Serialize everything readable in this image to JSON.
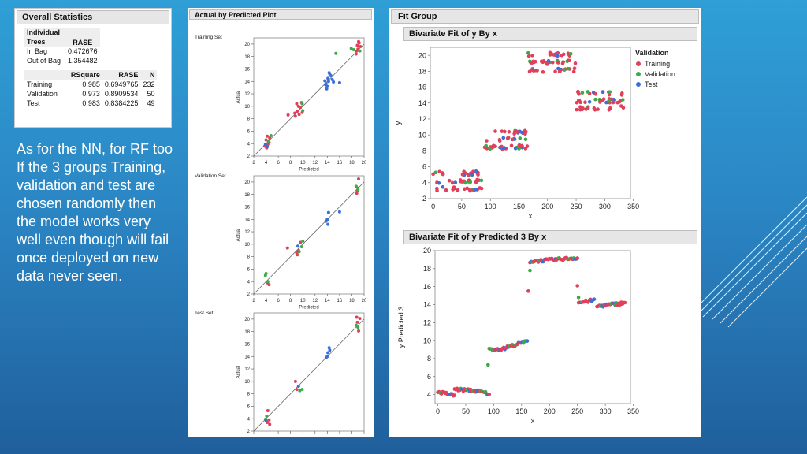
{
  "colors": {
    "training": "#e0405a",
    "validation": "#3caa46",
    "test": "#3a6fd8"
  },
  "overall_stats": {
    "title": "Overall Statistics",
    "table1": {
      "col_header_1": "Individual Trees",
      "col_header_2": "RASE",
      "rows": [
        {
          "label": "In Bag",
          "rase": "0.472676"
        },
        {
          "label": "Out of Bag",
          "rase": "1.354482"
        }
      ]
    },
    "table2": {
      "headers": [
        "",
        "RSquare",
        "RASE",
        "N"
      ],
      "rows": [
        {
          "label": "Training",
          "rsquare": "0.985",
          "rase": "0.6949765",
          "n": "232"
        },
        {
          "label": "Validation",
          "rsquare": "0.973",
          "rase": "0.8909534",
          "n": "50"
        },
        {
          "label": "Test",
          "rsquare": "0.983",
          "rase": "0.8384225",
          "n": "49"
        }
      ]
    }
  },
  "body_text": "As for the NN, for RF too If the 3 groups Training, validation and test are chosen randomly then the model works very well even though will fail once deployed on new data never seen.",
  "actual_by_predicted": {
    "title": "Actual by Predicted Plot"
  },
  "fit_group": {
    "title": "Fit Group",
    "plot1_title": "Bivariate Fit of y By x",
    "plot2_title": "Bivariate Fit of y Predicted 3 By x"
  },
  "chart_data": [
    {
      "type": "scatter",
      "id": "avp-training",
      "title": "Training Set",
      "xlabel": "Predicted",
      "ylabel": "Actual",
      "xlim": [
        2,
        20
      ],
      "ylim": [
        2,
        21
      ],
      "x_ticks": [
        2,
        4,
        6,
        8,
        10,
        12,
        14,
        16,
        18,
        20
      ],
      "y_ticks": [
        2,
        4,
        6,
        8,
        10,
        12,
        14,
        16,
        18,
        20
      ],
      "diagonal": true,
      "series": [
        {
          "name": "Training",
          "color_key": "training",
          "points": [
            [
              4.1,
              3.3
            ],
            [
              4.3,
              3.9
            ],
            [
              4.0,
              4.6
            ],
            [
              4.5,
              4.2
            ],
            [
              3.8,
              3.6
            ],
            [
              4.2,
              5.2
            ],
            [
              4.6,
              4.9
            ],
            [
              8.8,
              8.4
            ],
            [
              9.1,
              9.2
            ],
            [
              9.4,
              8.7
            ],
            [
              9.0,
              10.4
            ],
            [
              9.6,
              9.8
            ],
            [
              9.8,
              10.6
            ],
            [
              8.7,
              8.9
            ],
            [
              9.3,
              10.0
            ],
            [
              18.7,
              18.4
            ],
            [
              19.0,
              19.2
            ],
            [
              19.2,
              20.2
            ],
            [
              18.8,
              18.9
            ],
            [
              19.4,
              19.6
            ],
            [
              19.1,
              20.4
            ],
            [
              18.9,
              19.8
            ],
            [
              7.6,
              8.6
            ],
            [
              9.9,
              9.0
            ]
          ]
        },
        {
          "name": "Validation",
          "color_key": "validation",
          "points": [
            [
              4.4,
              4.4
            ],
            [
              4.8,
              5.3
            ],
            [
              9.9,
              10.4
            ],
            [
              10.0,
              9.3
            ],
            [
              15.4,
              18.5
            ],
            [
              18.3,
              19.1
            ],
            [
              17.9,
              19.3
            ],
            [
              19.3,
              18.9
            ]
          ]
        },
        {
          "name": "Test",
          "color_key": "test",
          "points": [
            [
              14.0,
              13.2
            ],
            [
              14.2,
              14.0
            ],
            [
              13.8,
              13.6
            ],
            [
              14.4,
              15.2
            ],
            [
              14.1,
              14.5
            ],
            [
              13.9,
              12.8
            ],
            [
              14.6,
              14.9
            ],
            [
              15.0,
              13.9
            ],
            [
              14.3,
              15.4
            ],
            [
              13.6,
              14.1
            ],
            [
              14.8,
              14.3
            ],
            [
              3.9,
              3.9
            ],
            [
              4.2,
              3.5
            ],
            [
              13.7,
              13.5
            ],
            [
              16.0,
              13.8
            ]
          ]
        }
      ]
    },
    {
      "type": "scatter",
      "id": "avp-validation",
      "title": "Validation Set",
      "xlabel": "Predicted",
      "ylabel": "Actual",
      "xlim": [
        2,
        20
      ],
      "ylim": [
        2,
        21
      ],
      "x_ticks": [
        2,
        4,
        6,
        8,
        10,
        12,
        14,
        16,
        18,
        20
      ],
      "y_ticks": [
        2,
        4,
        6,
        8,
        10,
        12,
        14,
        16,
        18,
        20
      ],
      "diagonal": true,
      "series": [
        {
          "name": "Training",
          "color_key": "training",
          "points": [
            [
              4.2,
              3.8
            ],
            [
              4.5,
              3.5
            ],
            [
              7.5,
              9.4
            ],
            [
              9.0,
              8.6
            ],
            [
              9.3,
              9.0
            ],
            [
              9.6,
              10.3
            ],
            [
              9.1,
              8.3
            ],
            [
              18.8,
              18.2
            ],
            [
              19.0,
              19.0
            ],
            [
              19.1,
              20.5
            ],
            [
              18.9,
              18.6
            ]
          ]
        },
        {
          "name": "Validation",
          "color_key": "validation",
          "points": [
            [
              4.0,
              5.3
            ],
            [
              3.9,
              5.0
            ],
            [
              10.0,
              10.5
            ],
            [
              9.8,
              9.6
            ],
            [
              9.4,
              8.8
            ],
            [
              19.0,
              18.8
            ],
            [
              18.7,
              19.3
            ],
            [
              4.3,
              4.0
            ]
          ]
        },
        {
          "name": "Test",
          "color_key": "test",
          "points": [
            [
              14.0,
              14.0
            ],
            [
              13.8,
              13.7
            ],
            [
              14.2,
              15.1
            ],
            [
              14.1,
              13.2
            ],
            [
              16.0,
              15.2
            ],
            [
              9.2,
              9.7
            ]
          ]
        }
      ]
    },
    {
      "type": "scatter",
      "id": "avp-test",
      "title": "Test Set",
      "xlabel": "Predicted",
      "ylabel": "Actual",
      "xlim": [
        2,
        20
      ],
      "ylim": [
        2,
        21
      ],
      "x_ticks": [
        2,
        4,
        6,
        8,
        10,
        12,
        14,
        16,
        18,
        20
      ],
      "y_ticks": [
        2,
        4,
        6,
        8,
        10,
        12,
        14,
        16,
        18,
        20
      ],
      "diagonal": true,
      "series": [
        {
          "name": "Training",
          "color_key": "training",
          "points": [
            [
              4.3,
              5.3
            ],
            [
              4.2,
              3.4
            ],
            [
              4.5,
              3.8
            ],
            [
              4.6,
              3.1
            ],
            [
              8.8,
              10.0
            ],
            [
              9.0,
              8.7
            ],
            [
              18.8,
              20.3
            ],
            [
              19.1,
              18.1
            ],
            [
              18.9,
              19.5
            ],
            [
              19.3,
              20.1
            ]
          ]
        },
        {
          "name": "Validation",
          "color_key": "validation",
          "points": [
            [
              3.9,
              3.9
            ],
            [
              4.1,
              4.4
            ],
            [
              9.5,
              8.5
            ],
            [
              9.9,
              8.7
            ],
            [
              18.7,
              19.0
            ],
            [
              19.0,
              18.7
            ]
          ]
        },
        {
          "name": "Test",
          "color_key": "test",
          "points": [
            [
              14.0,
              14.0
            ],
            [
              14.3,
              15.4
            ],
            [
              13.8,
              13.8
            ],
            [
              14.1,
              14.6
            ],
            [
              14.4,
              15.0
            ],
            [
              4.0,
              3.7
            ],
            [
              9.3,
              9.2
            ]
          ]
        }
      ]
    },
    {
      "type": "scatter",
      "id": "fit-y-by-x",
      "title": "Bivariate Fit of y By x",
      "xlabel": "x",
      "ylabel": "y",
      "xlim": [
        -5,
        345
      ],
      "ylim": [
        2,
        21
      ],
      "x_ticks": [
        0,
        50,
        100,
        150,
        200,
        250,
        300,
        350
      ],
      "y_ticks": [
        2,
        4,
        6,
        8,
        10,
        12,
        14,
        16,
        18,
        20
      ],
      "legend": {
        "title": "Validation",
        "items": [
          "Training",
          "Validation",
          "Test"
        ],
        "position": "top-right"
      },
      "groups": [
        {
          "x_range": [
            0,
            85
          ],
          "y_center": 4.2,
          "y_spread": 1.1,
          "count": 60
        },
        {
          "x_range": [
            90,
            165
          ],
          "y_center": 9.4,
          "y_spread": 1.0,
          "count": 55
        },
        {
          "x_range": [
            165,
            250
          ],
          "y_center": 19.1,
          "y_spread": 1.1,
          "count": 60
        },
        {
          "x_range": [
            250,
            335
          ],
          "y_center": 14.3,
          "y_spread": 1.0,
          "count": 55
        }
      ]
    },
    {
      "type": "scatter",
      "id": "fit-ypred-by-x",
      "title": "Bivariate Fit of y Predicted 3 By x",
      "xlabel": "x",
      "ylabel": "y Predicted 3",
      "xlim": [
        -5,
        345
      ],
      "ylim": [
        3,
        20
      ],
      "x_ticks": [
        0,
        50,
        100,
        150,
        200,
        250,
        300,
        350
      ],
      "y_ticks": [
        4,
        6,
        8,
        10,
        12,
        14,
        16,
        18,
        20
      ],
      "segments": [
        {
          "x_range": [
            0,
            30
          ],
          "y_start": 4.3,
          "y_end": 3.9
        },
        {
          "x_range": [
            30,
            70
          ],
          "y_start": 4.6,
          "y_end": 4.4
        },
        {
          "x_range": [
            70,
            92
          ],
          "y_start": 4.4,
          "y_end": 4.1
        },
        {
          "x_range": [
            92,
            120
          ],
          "y_start": 9.0,
          "y_end": 9.1
        },
        {
          "x_range": [
            120,
            160
          ],
          "y_start": 9.2,
          "y_end": 9.9
        },
        {
          "x_range": [
            165,
            250
          ],
          "y_start": 18.8,
          "y_end": 19.2
        },
        {
          "x_range": [
            252,
            280
          ],
          "y_start": 14.2,
          "y_end": 14.5
        },
        {
          "x_range": [
            285,
            335
          ],
          "y_start": 13.8,
          "y_end": 14.2
        }
      ],
      "outliers": [
        [
          90,
          7.3
        ],
        [
          162,
          15.5
        ],
        [
          165,
          17.8
        ],
        [
          250,
          16.1
        ],
        [
          252,
          14.8
        ]
      ]
    }
  ]
}
